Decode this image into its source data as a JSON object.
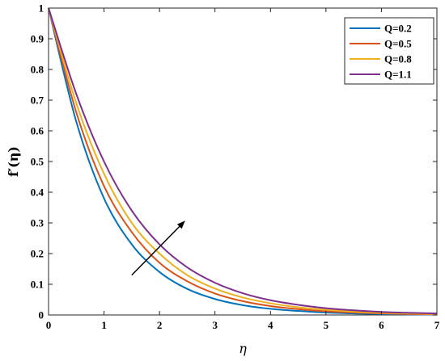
{
  "chart_data": {
    "type": "line",
    "xlabel": "η",
    "ylabel": "f′(η)",
    "xlim": [
      0,
      7
    ],
    "ylim": [
      0,
      1
    ],
    "x_ticks": [
      "0",
      "1",
      "2",
      "3",
      "4",
      "5",
      "6",
      "7"
    ],
    "y_ticks": [
      "0",
      "0.1",
      "0.2",
      "0.3",
      "0.4",
      "0.5",
      "0.6",
      "0.7",
      "0.8",
      "0.9",
      "1"
    ],
    "grid": false,
    "legend_position": "top-right",
    "annotation": "arrow indicating increasing Q",
    "x": [
      0,
      0.5,
      1,
      1.5,
      2,
      2.5,
      3,
      3.5,
      4,
      4.5,
      5,
      5.5,
      6,
      6.5,
      7
    ],
    "series": [
      {
        "name": "Q=0.2",
        "color": "#0072BD",
        "values": [
          1.0,
          0.63,
          0.38,
          0.23,
          0.14,
          0.085,
          0.052,
          0.032,
          0.02,
          0.013,
          0.008,
          0.005,
          0.003,
          0.002,
          0.001
        ]
      },
      {
        "name": "Q=0.5",
        "color": "#D95319",
        "values": [
          1.0,
          0.66,
          0.42,
          0.27,
          0.17,
          0.11,
          0.07,
          0.045,
          0.029,
          0.019,
          0.012,
          0.008,
          0.005,
          0.003,
          0.002
        ]
      },
      {
        "name": "Q=0.8",
        "color": "#EDB120",
        "values": [
          1.0,
          0.69,
          0.46,
          0.3,
          0.2,
          0.13,
          0.086,
          0.057,
          0.038,
          0.025,
          0.017,
          0.011,
          0.007,
          0.005,
          0.003
        ]
      },
      {
        "name": "Q=1.1",
        "color": "#7E2F8E",
        "values": [
          1.0,
          0.72,
          0.5,
          0.34,
          0.23,
          0.155,
          0.105,
          0.071,
          0.048,
          0.033,
          0.022,
          0.015,
          0.01,
          0.007,
          0.005
        ]
      }
    ],
    "arrow": {
      "from": [
        1.5,
        0.13
      ],
      "to": [
        2.45,
        0.305
      ]
    }
  }
}
